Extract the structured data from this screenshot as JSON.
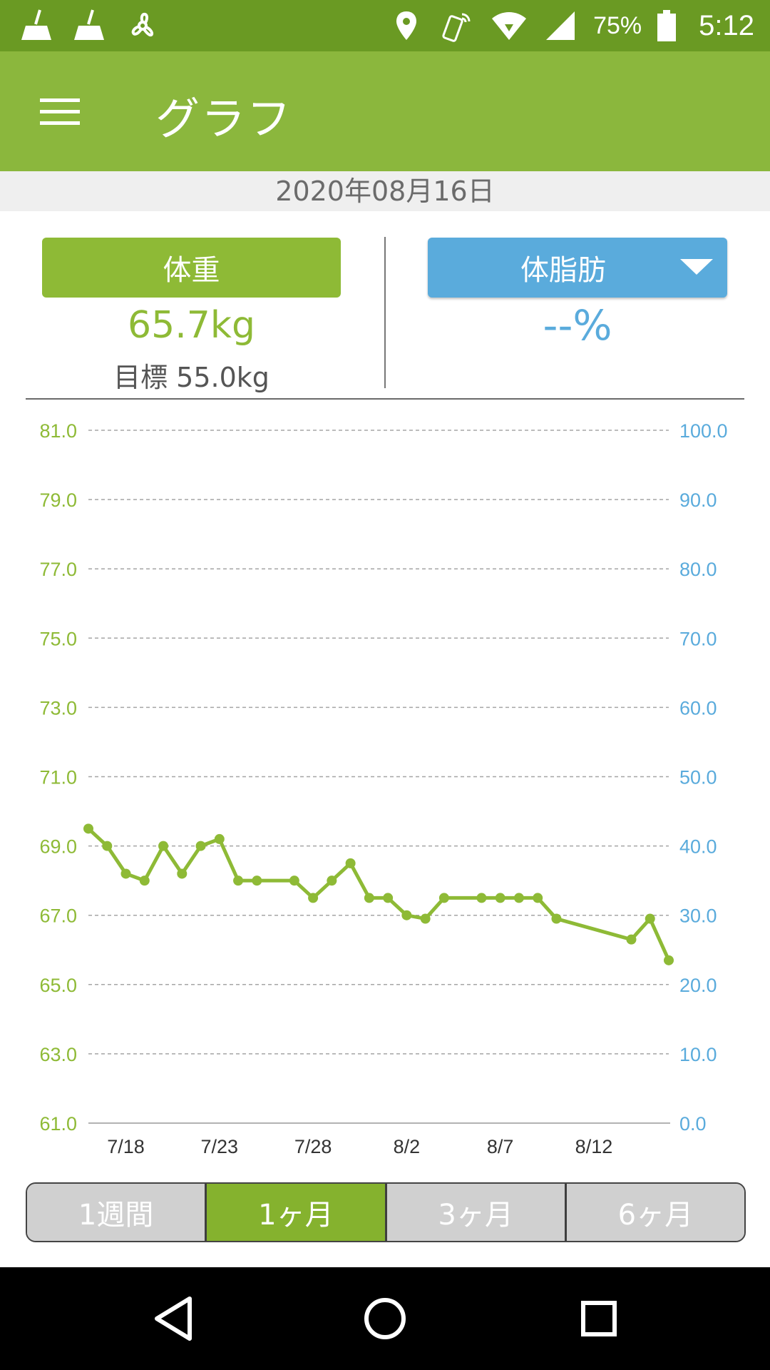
{
  "status_bar": {
    "left_icons": [
      "broom-icon",
      "broom-icon",
      "fan-icon"
    ],
    "right_icons": [
      "location-pin-icon",
      "nfc-phone-icon",
      "wifi-icon",
      "signal-icon",
      "battery-icon"
    ],
    "battery": "75%",
    "time": "5:12"
  },
  "app_bar": {
    "title": "グラフ",
    "menu_icon": "hamburger-menu-icon"
  },
  "date": "2020年08月16日",
  "summary": {
    "weight_label": "体重",
    "weight_value": "65.7kg",
    "goal_text": "目標 55.0kg",
    "fat_label": "体脂肪",
    "fat_value": "--%"
  },
  "colors": {
    "status_bar": "#6a9a23",
    "app_bar": "#8bb73d",
    "weight_accent": "#8eba36",
    "fat_accent": "#5aabdc",
    "active_tab": "#85b22e",
    "inactive_tab": "#d0d0d0"
  },
  "chart_data": {
    "type": "line",
    "left_axis": {
      "ylim": [
        61.0,
        81.0
      ],
      "ticks": [
        "81.0",
        "79.0",
        "77.0",
        "75.0",
        "73.0",
        "71.0",
        "69.0",
        "67.0",
        "65.0",
        "63.0",
        "61.0"
      ]
    },
    "right_axis": {
      "ylim": [
        0.0,
        100.0
      ],
      "ticks": [
        "100.0",
        "90.0",
        "80.0",
        "70.0",
        "60.0",
        "50.0",
        "40.0",
        "30.0",
        "20.0",
        "10.0",
        "0.0"
      ]
    },
    "x_ticks": [
      "7/18",
      "7/23",
      "7/28",
      "8/2",
      "8/7",
      "8/12"
    ],
    "grid": true,
    "series": [
      {
        "x": [
          "7/16",
          "7/17",
          "7/18",
          "7/19",
          "7/20",
          "7/21",
          "7/22",
          "7/23",
          "7/24",
          "7/25",
          "7/27",
          "7/28",
          "7/29",
          "7/30",
          "7/31",
          "8/1",
          "8/2",
          "8/3",
          "8/4",
          "8/6",
          "8/7",
          "8/8",
          "8/9",
          "8/10",
          "8/14",
          "8/15",
          "8/16"
        ],
        "values": [
          69.5,
          69.0,
          68.2,
          68.0,
          69.0,
          68.2,
          69.0,
          69.2,
          68.0,
          68.0,
          68.0,
          67.5,
          68.0,
          68.5,
          67.5,
          67.5,
          67.0,
          66.9,
          67.5,
          67.5,
          67.5,
          67.5,
          67.5,
          66.9,
          66.3,
          66.9,
          65.7
        ]
      }
    ]
  },
  "tabs": [
    {
      "label": "1週間",
      "active": false
    },
    {
      "label": "1ヶ月",
      "active": true
    },
    {
      "label": "3ヶ月",
      "active": false
    },
    {
      "label": "6ヶ月",
      "active": false
    }
  ],
  "nav_bar": {
    "icons": [
      "back-icon",
      "home-icon",
      "recents-icon"
    ]
  }
}
